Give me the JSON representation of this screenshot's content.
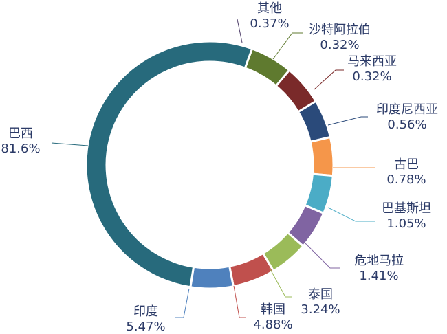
{
  "chart_data": {
    "type": "pie",
    "donut": true,
    "legend": "none",
    "categories": [
      "其他",
      "沙特阿拉伯",
      "马来西亚",
      "印度尼西亚",
      "古巴",
      "巴基斯坦",
      "危地马拉",
      "泰国",
      "韩国",
      "印度",
      "巴西"
    ],
    "display_values": [
      "0.37%",
      "0.32%",
      "0.32%",
      "0.56%",
      "0.78%",
      "1.05%",
      "1.41%",
      "3.24%",
      "4.88%",
      "5.47%",
      "81.6%"
    ],
    "values": [
      0.37,
      0.32,
      0.32,
      0.56,
      0.78,
      1.05,
      1.41,
      3.24,
      4.88,
      5.47,
      81.6
    ],
    "colors": [
      "#4f3f6a",
      "#5f7a2f",
      "#7a2a2a",
      "#2a4a7a",
      "#f5964a",
      "#4bacc6",
      "#8064a2",
      "#9bbb59",
      "#c0504d",
      "#4f81bd",
      "#276a7c"
    ]
  }
}
